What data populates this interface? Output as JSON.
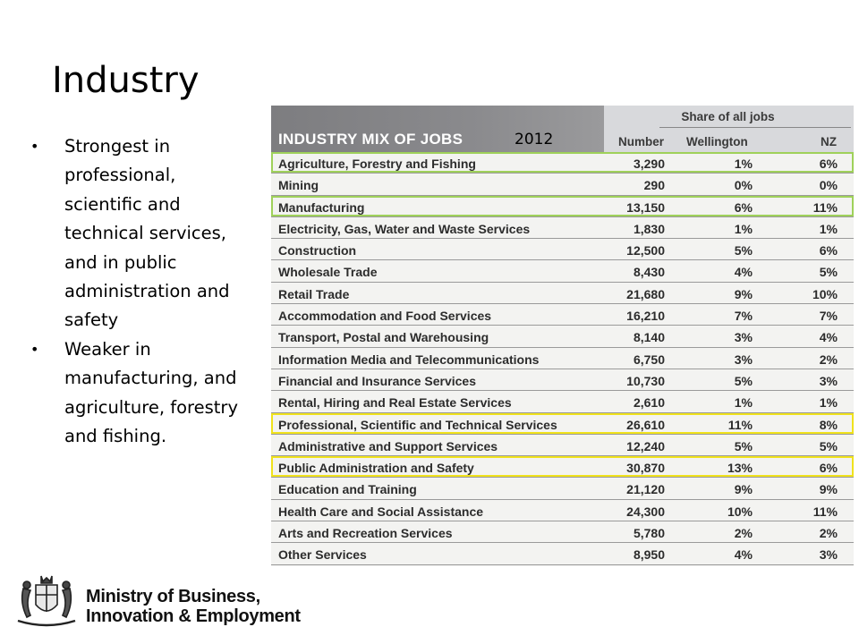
{
  "slide": {
    "title": "Industry",
    "bullets": [
      "Strongest in professional, scientific and technical services, and in public administration and safety",
      "Weaker in manufacturing, and agriculture, forestry and fishing."
    ]
  },
  "table": {
    "title": "INDUSTRY MIX OF JOBS",
    "year": "2012",
    "group_header": "Share of all jobs",
    "columns": [
      "Number",
      "Wellington",
      "NZ"
    ],
    "rows": [
      {
        "industry": "Agriculture, Forestry and Fishing",
        "number": "3,290",
        "wellington": "1%",
        "nz": "6%",
        "highlight": "green"
      },
      {
        "industry": "Mining",
        "number": "290",
        "wellington": "0%",
        "nz": "0%",
        "highlight": ""
      },
      {
        "industry": "Manufacturing",
        "number": "13,150",
        "wellington": "6%",
        "nz": "11%",
        "highlight": "green"
      },
      {
        "industry": "Electricity, Gas, Water and Waste Services",
        "number": "1,830",
        "wellington": "1%",
        "nz": "1%",
        "highlight": ""
      },
      {
        "industry": "Construction",
        "number": "12,500",
        "wellington": "5%",
        "nz": "6%",
        "highlight": ""
      },
      {
        "industry": "Wholesale Trade",
        "number": "8,430",
        "wellington": "4%",
        "nz": "5%",
        "highlight": ""
      },
      {
        "industry": "Retail Trade",
        "number": "21,680",
        "wellington": "9%",
        "nz": "10%",
        "highlight": ""
      },
      {
        "industry": "Accommodation and Food Services",
        "number": "16,210",
        "wellington": "7%",
        "nz": "7%",
        "highlight": ""
      },
      {
        "industry": "Transport, Postal and Warehousing",
        "number": "8,140",
        "wellington": "3%",
        "nz": "4%",
        "highlight": ""
      },
      {
        "industry": "Information Media and Telecommunications",
        "number": "6,750",
        "wellington": "3%",
        "nz": "2%",
        "highlight": ""
      },
      {
        "industry": "Financial and Insurance Services",
        "number": "10,730",
        "wellington": "5%",
        "nz": "3%",
        "highlight": ""
      },
      {
        "industry": "Rental, Hiring and Real Estate Services",
        "number": "2,610",
        "wellington": "1%",
        "nz": "1%",
        "highlight": ""
      },
      {
        "industry": "Professional, Scientific and Technical Services",
        "number": "26,610",
        "wellington": "11%",
        "nz": "8%",
        "highlight": "yellow"
      },
      {
        "industry": "Administrative and Support Services",
        "number": "12,240",
        "wellington": "5%",
        "nz": "5%",
        "highlight": ""
      },
      {
        "industry": "Public Administration and Safety",
        "number": "30,870",
        "wellington": "13%",
        "nz": "6%",
        "highlight": "yellow"
      },
      {
        "industry": "Education and Training",
        "number": "21,120",
        "wellington": "9%",
        "nz": "9%",
        "highlight": ""
      },
      {
        "industry": "Health Care and Social Assistance",
        "number": "24,300",
        "wellington": "10%",
        "nz": "11%",
        "highlight": ""
      },
      {
        "industry": "Arts and Recreation Services",
        "number": "5,780",
        "wellington": "2%",
        "nz": "2%",
        "highlight": ""
      },
      {
        "industry": "Other Services",
        "number": "8,950",
        "wellington": "4%",
        "nz": "3%",
        "highlight": ""
      }
    ],
    "colors": {
      "green_highlight": "#9fd15a",
      "yellow_highlight": "#f0e21c",
      "header_dark": "#8a8a8d"
    }
  },
  "logo": {
    "line1": "Ministry of Business,",
    "line2": "Innovation & Employment",
    "crest_icon": "nz-coat-of-arms-icon"
  }
}
